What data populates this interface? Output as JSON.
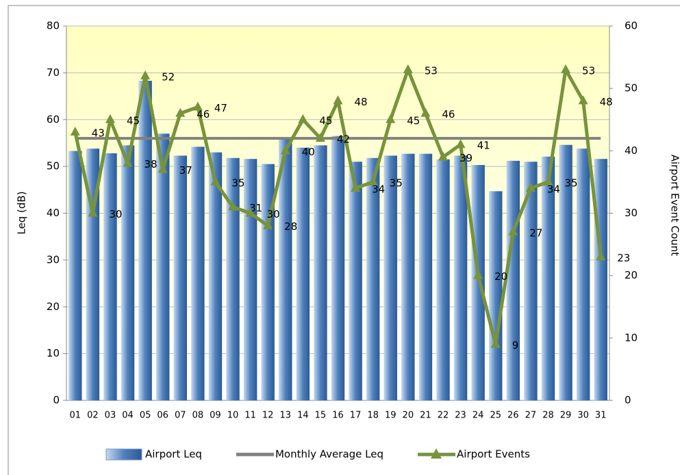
{
  "chart_data": {
    "type": "bar-line",
    "categories": [
      "01",
      "02",
      "03",
      "04",
      "05",
      "06",
      "07",
      "08",
      "09",
      "10",
      "11",
      "12",
      "13",
      "14",
      "15",
      "16",
      "17",
      "18",
      "19",
      "20",
      "21",
      "22",
      "23",
      "24",
      "25",
      "26",
      "27",
      "28",
      "29",
      "30",
      "31"
    ],
    "series": [
      {
        "name": "Airport Leq",
        "type": "bar",
        "color": "#4f81bd",
        "values": [
          53.3,
          53.8,
          52.8,
          54.5,
          68.3,
          57,
          52.3,
          54.2,
          53,
          51.8,
          51.6,
          50.5,
          56,
          54,
          54.5,
          56.5,
          51,
          51.8,
          52.3,
          52.7,
          52.7,
          51.5,
          52.3,
          50.3,
          44.7,
          51.2,
          51,
          52.1,
          54.6,
          53.8,
          51.6
        ]
      },
      {
        "name": "Monthly Average Leq",
        "type": "line",
        "color": "#808080",
        "values": [
          56,
          56,
          56,
          56,
          56,
          56,
          56,
          56,
          56,
          56,
          56,
          56,
          56,
          56,
          56,
          56,
          56,
          56,
          56,
          56,
          56,
          56,
          56,
          56,
          56,
          56,
          56,
          56,
          56,
          56,
          56
        ]
      },
      {
        "name": "Airport Events",
        "type": "line",
        "axis": "y2",
        "color": "#77933c",
        "values": [
          43,
          30,
          45,
          38,
          52,
          37,
          46,
          47,
          35,
          31,
          30,
          28,
          40,
          45,
          42,
          48,
          34,
          35,
          45,
          53,
          46,
          39,
          41,
          20,
          9,
          27,
          34,
          35,
          53,
          48,
          23
        ]
      }
    ],
    "ylabel": "Leq (dB)",
    "y2label": "Airport Event Count",
    "ylim": [
      0,
      80
    ],
    "yticks": [
      0,
      10,
      20,
      30,
      40,
      50,
      60,
      70,
      80
    ],
    "y2lim": [
      0,
      60
    ],
    "y2ticks": [
      0,
      10,
      20,
      30,
      40,
      50,
      60
    ],
    "legend": "bottom"
  }
}
